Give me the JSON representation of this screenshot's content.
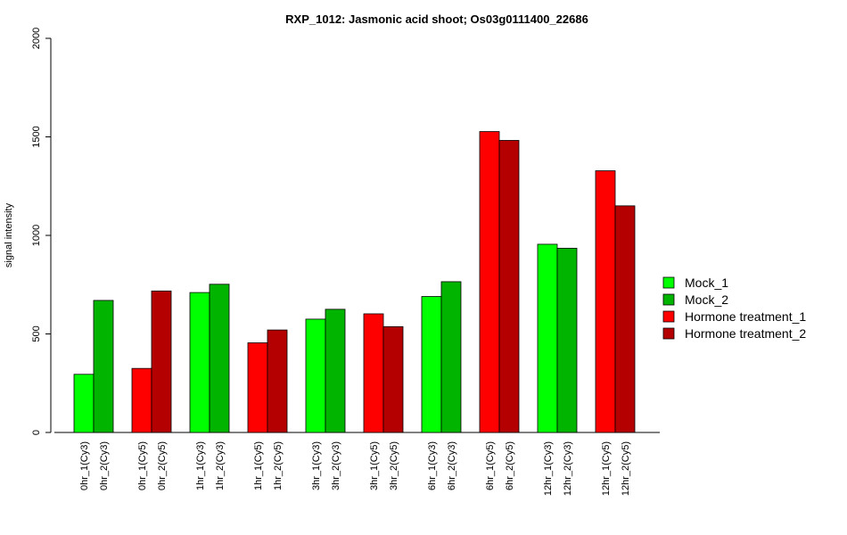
{
  "chart_data": {
    "type": "bar",
    "title": "RXP_1012: Jasmonic acid shoot; Os03g0111400_22686",
    "xlabel": "",
    "ylabel": "signal intensity",
    "ylim": [
      0,
      2000
    ],
    "yticks": [
      "0",
      "500",
      "1000",
      "1500",
      "2000"
    ],
    "grid": false,
    "legend_position": "right",
    "legend": [
      {
        "name": "Mock_1",
        "color": "#00ff00"
      },
      {
        "name": "Mock_2",
        "color": "#00b400"
      },
      {
        "name": "Hormone treatment_1",
        "color": "#ff0000"
      },
      {
        "name": "Hormone treatment_2",
        "color": "#b40000"
      }
    ],
    "bars": [
      {
        "label": "0hr_1(Cy3)",
        "value": 295,
        "series": "Mock_1",
        "color": "#00ff00"
      },
      {
        "label": "0hr_2(Cy3)",
        "value": 670,
        "series": "Mock_2",
        "color": "#00b400"
      },
      {
        "label": "0hr_1(Cy5)",
        "value": 325,
        "series": "Hormone treatment_1",
        "color": "#ff0000"
      },
      {
        "label": "0hr_2(Cy5)",
        "value": 718,
        "series": "Hormone treatment_2",
        "color": "#b40000"
      },
      {
        "label": "1hr_1(Cy3)",
        "value": 710,
        "series": "Mock_1",
        "color": "#00ff00"
      },
      {
        "label": "1hr_2(Cy3)",
        "value": 752,
        "series": "Mock_2",
        "color": "#00b400"
      },
      {
        "label": "1hr_1(Cy5)",
        "value": 455,
        "series": "Hormone treatment_1",
        "color": "#ff0000"
      },
      {
        "label": "1hr_2(Cy5)",
        "value": 520,
        "series": "Hormone treatment_2",
        "color": "#b40000"
      },
      {
        "label": "3hr_1(Cy3)",
        "value": 575,
        "series": "Mock_1",
        "color": "#00ff00"
      },
      {
        "label": "3hr_2(Cy3)",
        "value": 625,
        "series": "Mock_2",
        "color": "#00b400"
      },
      {
        "label": "3hr_1(Cy5)",
        "value": 602,
        "series": "Hormone treatment_1",
        "color": "#ff0000"
      },
      {
        "label": "3hr_2(Cy5)",
        "value": 537,
        "series": "Hormone treatment_2",
        "color": "#b40000"
      },
      {
        "label": "6hr_1(Cy3)",
        "value": 690,
        "series": "Mock_1",
        "color": "#00ff00"
      },
      {
        "label": "6hr_2(Cy3)",
        "value": 765,
        "series": "Mock_2",
        "color": "#00b400"
      },
      {
        "label": "6hr_1(Cy5)",
        "value": 1527,
        "series": "Hormone treatment_1",
        "color": "#ff0000"
      },
      {
        "label": "6hr_2(Cy5)",
        "value": 1482,
        "series": "Hormone treatment_2",
        "color": "#b40000"
      },
      {
        "label": "12hr_1(Cy3)",
        "value": 955,
        "series": "Mock_1",
        "color": "#00ff00"
      },
      {
        "label": "12hr_2(Cy3)",
        "value": 935,
        "series": "Mock_2",
        "color": "#00b400"
      },
      {
        "label": "12hr_1(Cy5)",
        "value": 1328,
        "series": "Hormone treatment_1",
        "color": "#ff0000"
      },
      {
        "label": "12hr_2(Cy5)",
        "value": 1150,
        "series": "Hormone treatment_2",
        "color": "#b40000"
      }
    ]
  }
}
